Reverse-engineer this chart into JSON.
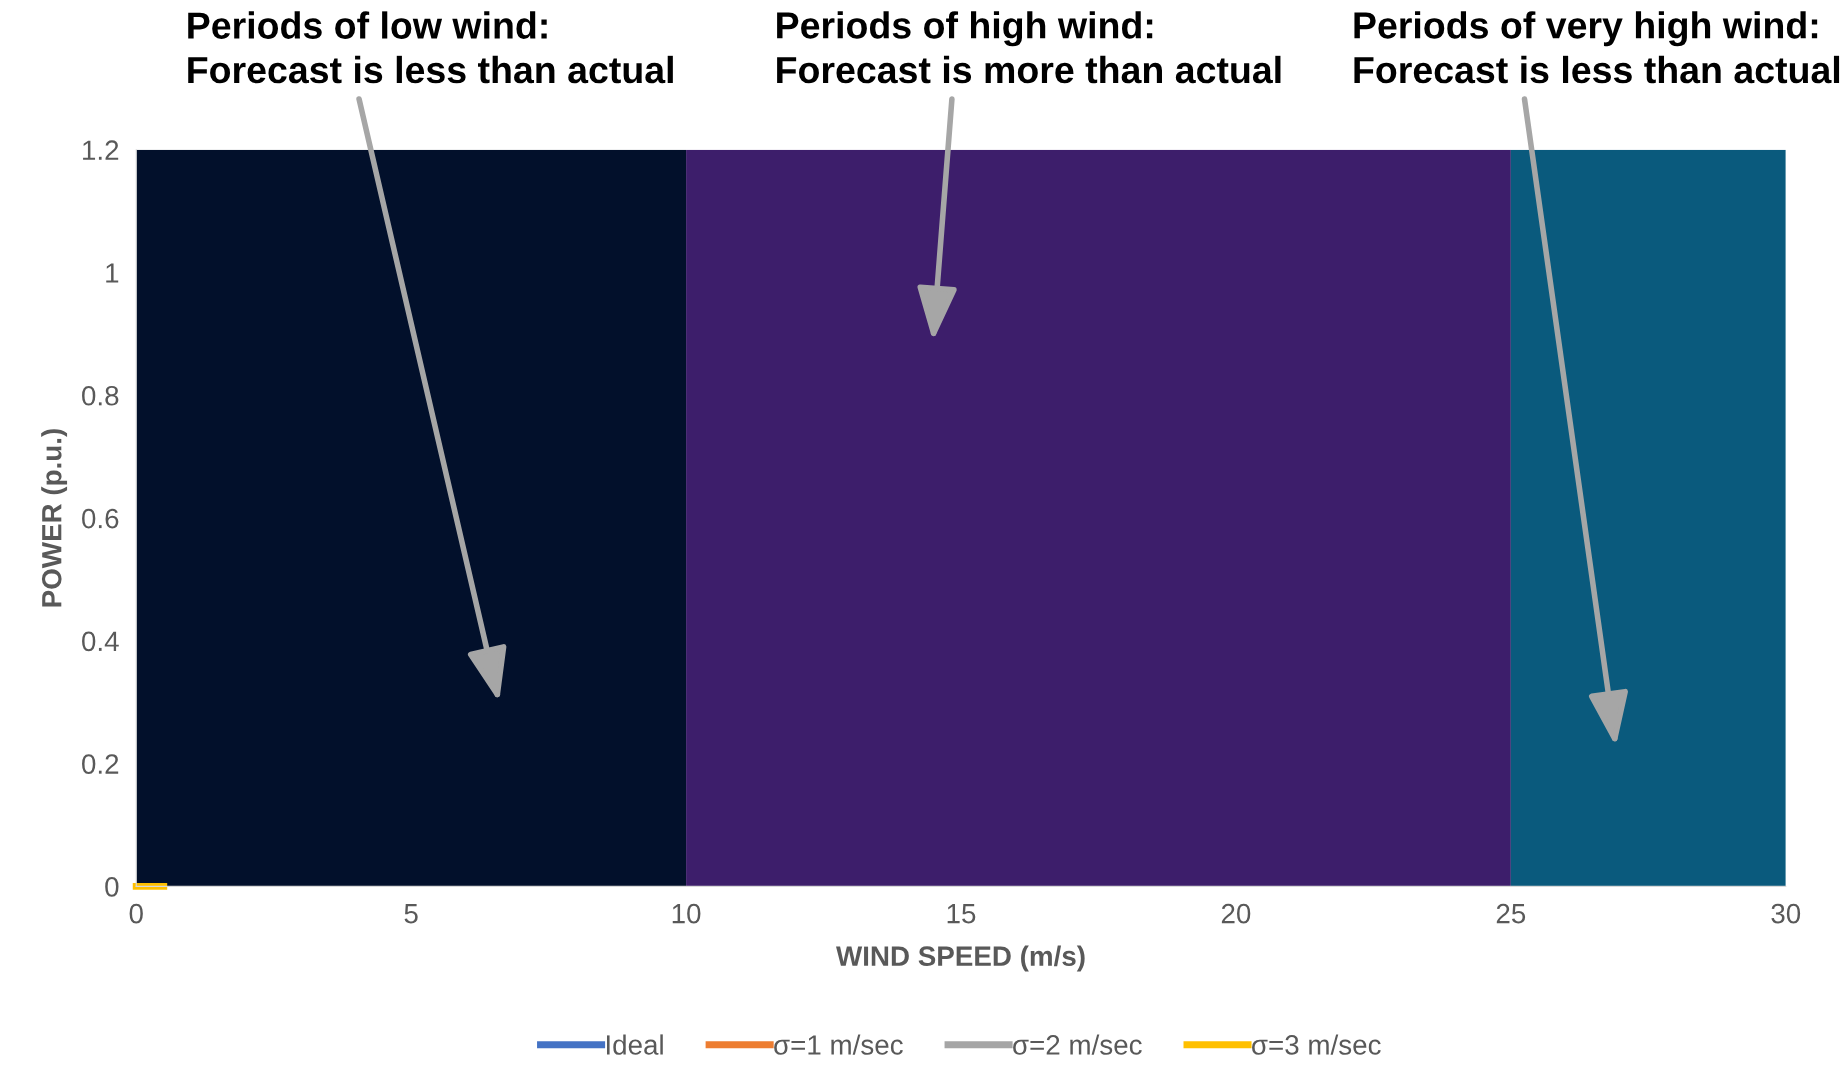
{
  "chart_data": {
    "type": "line",
    "xlabel": "WIND SPEED (m/s)",
    "ylabel": "POWER (p.u.)",
    "xlim": [
      0,
      30
    ],
    "xticks": [
      0,
      5,
      10,
      15,
      20,
      25,
      30
    ],
    "ylim": [
      0,
      1.2
    ],
    "yticks": [
      0,
      0.2,
      0.4,
      0.6,
      0.8,
      1,
      1.2
    ],
    "x": [
      0,
      0.5
    ],
    "series": [
      {
        "name": "Ideal",
        "color": "#4472c4",
        "values": [
          null,
          null
        ]
      },
      {
        "name": "σ=1 m/sec",
        "color": "#ed7d31",
        "values": [
          null,
          null
        ]
      },
      {
        "name": "σ=2 m/sec",
        "color": "#a5a5a5",
        "values": [
          null,
          null
        ]
      },
      {
        "name": "σ=3 m/sec",
        "color": "#ffc000",
        "values": [
          0,
          0
        ]
      }
    ],
    "bands": [
      {
        "axis": "x",
        "from": 0,
        "to": 10,
        "color": "#02102b"
      },
      {
        "axis": "x",
        "from": 10,
        "to": 25,
        "color": "#3d1e6b"
      },
      {
        "axis": "x",
        "from": 25,
        "to": 30,
        "color": "#0a5a7d"
      }
    ],
    "annotations": [
      "Periods of low wind:\nForecast is less than actual",
      "Periods of high wind:\nForecast is more than actual",
      "Periods of very high wind:\nForecast is less than actual"
    ],
    "legend": "bottom",
    "grid": false
  }
}
